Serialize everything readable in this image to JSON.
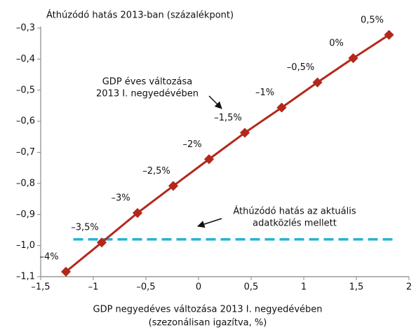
{
  "chart_data": {
    "type": "line",
    "title": "Áthúzódó hatás 2013-ban (százalékpont)",
    "x_label": [
      "GDP negyedéves változása 2013 I. negyedévében",
      "(szezonálisan igazítva, %)"
    ],
    "series": [
      {
        "color": "#b3281b",
        "x": [
          -1.26,
          -0.92,
          -0.58,
          -0.24,
          0.1,
          0.44,
          0.79,
          1.13,
          1.47,
          1.81
        ],
        "values": [
          -1.084,
          -0.99,
          -0.895,
          -0.808,
          -0.722,
          -0.637,
          -0.556,
          -0.475,
          -0.397,
          -0.322
        ],
        "point_labels": [
          "–4%",
          "–3,5%",
          "–3%",
          "–2,5%",
          "–2%",
          "–1,5%",
          "–1%",
          "–0,5%",
          "0%",
          "0,5%"
        ]
      }
    ],
    "reference": {
      "color": "#25b3d4",
      "x": [
        -1.19,
        1.85
      ],
      "values": [
        -0.98,
        -0.98
      ]
    },
    "annotations": [
      {
        "lines": [
          "GDP éves változása",
          "2013 I. negyedévében"
        ]
      },
      {
        "lines": [
          "Áthúzódó hatás az aktuális",
          "adatközlés mellett"
        ]
      }
    ],
    "xlim": [
      -1.5,
      2
    ],
    "xticks": [
      {
        "value": -1.5,
        "label": "–1,5"
      },
      {
        "value": -1,
        "label": "–1"
      },
      {
        "value": -0.5,
        "label": "–0,5"
      },
      0,
      {
        "value": 0.5,
        "label": "0,5"
      },
      1,
      {
        "value": 1.5,
        "label": "1,5"
      },
      2
    ],
    "ylim": [
      -1.1,
      -0.3
    ],
    "yticks": [
      {
        "value": -1.1,
        "label": "–1,1"
      },
      {
        "value": -1.0,
        "label": "–1,0"
      },
      {
        "value": -0.9,
        "label": "–0,9"
      },
      {
        "value": -0.8,
        "label": "–0,8"
      },
      {
        "value": -0.7,
        "label": "–0,7"
      },
      {
        "value": -0.6,
        "label": "–0,6"
      },
      {
        "value": -0.5,
        "label": "–0,5"
      },
      {
        "value": -0.4,
        "label": "–0,4"
      },
      {
        "value": -0.3,
        "label": "–0,3"
      }
    ]
  }
}
